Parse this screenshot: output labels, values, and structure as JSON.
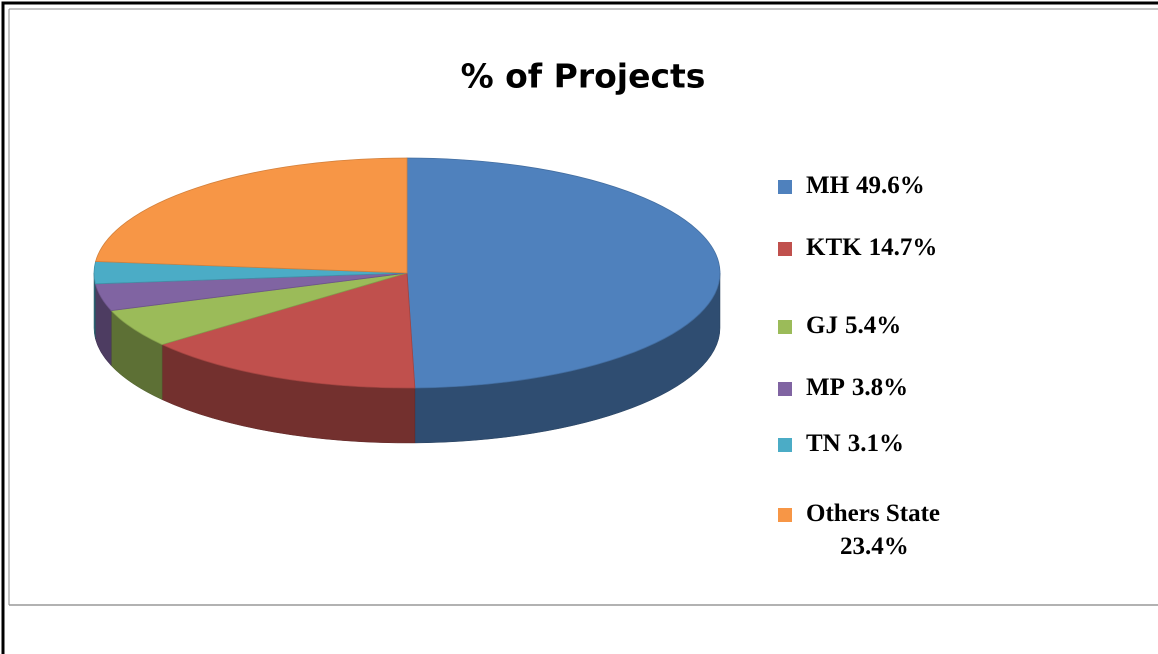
{
  "chart_data": {
    "type": "pie",
    "title": "% of Projects",
    "categories": [
      "MH",
      "KTK",
      "GJ",
      "MP",
      "TN",
      "Others State"
    ],
    "values": [
      49.6,
      14.7,
      5.4,
      3.8,
      3.1,
      23.4
    ],
    "value_labels": [
      "49.6%",
      "14.7%",
      "5.4%",
      "3.8%",
      "3.1%",
      "23.4%"
    ],
    "colors": [
      "#4f81bd",
      "#c0504d",
      "#9bbb59",
      "#8064a2",
      "#4bacc6",
      "#f79646"
    ],
    "legend": "right"
  }
}
